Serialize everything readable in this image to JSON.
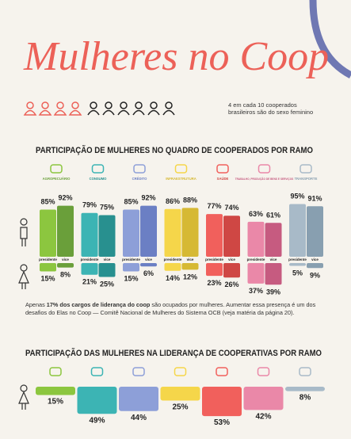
{
  "title": "Mulheres no Coop",
  "stat": "4 em cada 10 cooperados brasileiros são do sexo feminino",
  "section1": {
    "title": "PARTICIPAÇÃO DE MULHERES NO QUADRO DE COOPERADOS POR RAMO",
    "role_labels": [
      "presidente",
      "vice"
    ],
    "branches": [
      {
        "name": "AGROPECUÁRIO",
        "color": "#8cc63f",
        "color2": "#6a9f3a",
        "men": [
          85,
          92
        ],
        "men_labels": [
          "85%",
          "92%"
        ],
        "women": [
          15,
          8
        ],
        "women_labels": [
          "15%",
          "8%"
        ]
      },
      {
        "name": "CONSUMO",
        "color": "#3cb4b4",
        "color2": "#28908f",
        "men": [
          79,
          75
        ],
        "men_labels": [
          "79%",
          "75%"
        ],
        "women": [
          21,
          25
        ],
        "women_labels": [
          "21%",
          "25%"
        ]
      },
      {
        "name": "CRÉDITO",
        "color": "#8d9fd8",
        "color2": "#6b7fc4",
        "men": [
          85,
          92
        ],
        "men_labels": [
          "85%",
          "92%"
        ],
        "women": [
          15,
          6
        ],
        "women_labels": [
          "15%",
          "6%"
        ]
      },
      {
        "name": "INFRAESTRUTURA",
        "color": "#f5d64a",
        "color2": "#d6b934",
        "men": [
          86,
          88
        ],
        "men_labels": [
          "86%",
          "88%"
        ],
        "women": [
          14,
          12
        ],
        "women_labels": [
          "14%",
          "12%"
        ]
      },
      {
        "name": "SAÚDE",
        "color": "#f1605c",
        "color2": "#cf4744",
        "men": [
          77,
          74
        ],
        "men_labels": [
          "77%",
          "74%"
        ],
        "women": [
          23,
          26
        ],
        "women_labels": [
          "23%",
          "26%"
        ]
      },
      {
        "name": "TRABALHO, PRODUÇÃO DE BENS E SERVIÇOS",
        "color": "#ea88a8",
        "color2": "#c65b80",
        "men": [
          63,
          61
        ],
        "men_labels": [
          "63%",
          "61%"
        ],
        "women": [
          37,
          39
        ],
        "women_labels": [
          "37%",
          "39%"
        ]
      },
      {
        "name": "TRANSPORTE",
        "color": "#a8bac8",
        "color2": "#889fb0",
        "men": [
          95,
          91
        ],
        "men_labels": [
          "95%",
          "91%"
        ],
        "women": [
          5,
          9
        ],
        "women_labels": [
          "5%",
          "9%"
        ]
      }
    ]
  },
  "note": [
    "Apenas",
    "17% dos cargos de liderança do coop",
    "são ocupados por mulheres. Aumentar essa presença é um dos desafios do Elas no Coop — Comitê Nacional de Mulheres do Sistema OCB (veja matéria da página 20)."
  ],
  "section2": {
    "title": "PARTICIPAÇÃO DAS MULHERES NA LIDERANÇA DE COOPERATIVAS POR RAMO",
    "values": [
      15,
      49,
      44,
      25,
      53,
      42,
      8
    ],
    "value_labels": [
      "15%",
      "49%",
      "44%",
      "25%",
      "53%",
      "42%",
      "8%"
    ]
  }
}
